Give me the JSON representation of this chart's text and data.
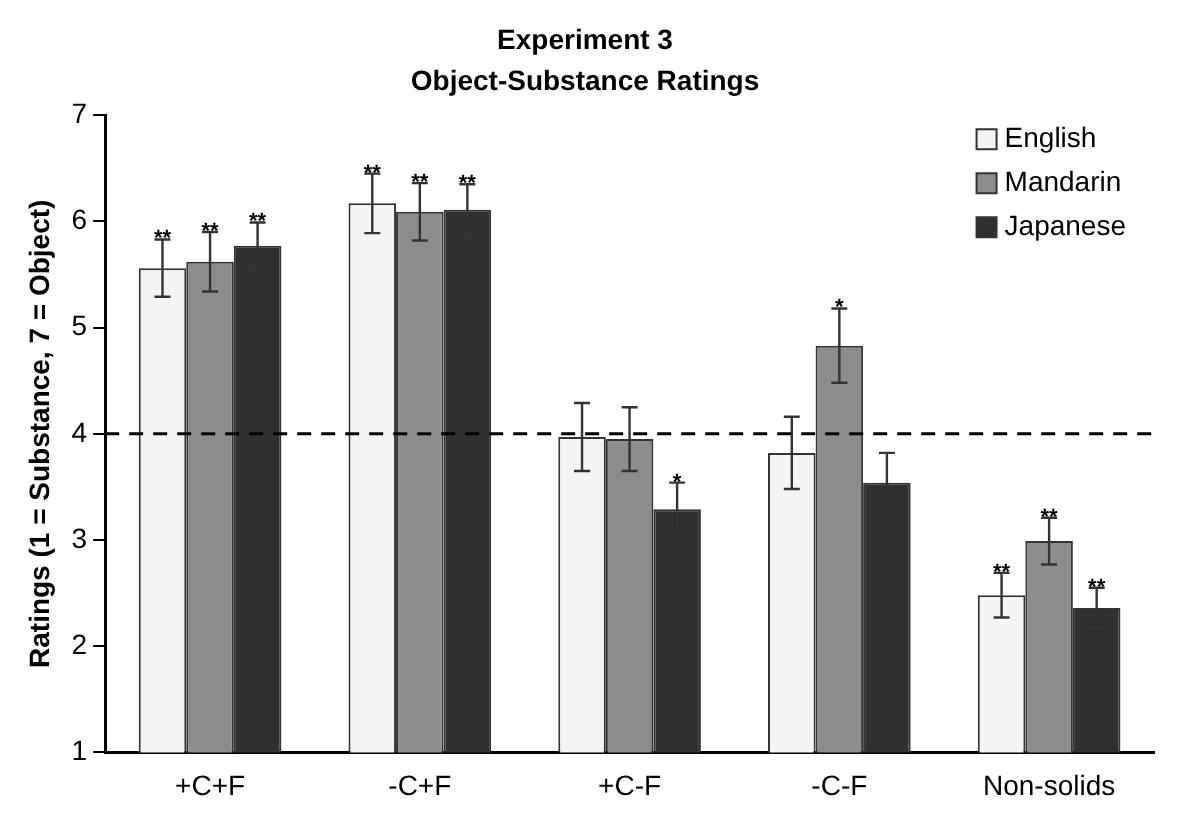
{
  "chart_data": {
    "type": "bar",
    "title": "Experiment 3",
    "subtitle": "Object-Substance Ratings",
    "ylabel": "Ratings (1 = Substance, 7 = Object)",
    "categories": [
      "+C+F",
      "-C+F",
      "+C-F",
      "-C-F",
      "Non-solids"
    ],
    "series": [
      {
        "name": "English",
        "color": "#f4f4f4",
        "values": [
          5.56,
          6.17,
          3.97,
          3.82,
          2.48
        ],
        "errors": [
          0.27,
          0.28,
          0.32,
          0.34,
          0.21
        ],
        "value_labels": [
          "**",
          "**",
          null,
          null,
          "**"
        ]
      },
      {
        "name": "Mandarin",
        "color": "#8c8c8c",
        "values": [
          5.62,
          6.09,
          3.95,
          4.83,
          2.99
        ],
        "errors": [
          0.28,
          0.27,
          0.3,
          0.35,
          0.22
        ],
        "value_labels": [
          "**",
          "**",
          null,
          "*",
          "**"
        ]
      },
      {
        "name": "Japanese",
        "color": "#303030",
        "values": [
          5.77,
          6.11,
          3.29,
          3.54,
          2.36
        ],
        "errors": [
          0.22,
          0.24,
          0.25,
          0.28,
          0.19
        ],
        "value_labels": [
          "**",
          "**",
          "*",
          null,
          "**"
        ]
      }
    ],
    "ylim": [
      1,
      7
    ],
    "yticks": [
      1,
      2,
      3,
      4,
      5,
      6,
      7
    ],
    "grid": false,
    "legend": "top right",
    "ref_lines": [
      {
        "axis": "y",
        "value": 4,
        "line_style": "dashed",
        "color": "#000000"
      }
    ]
  }
}
